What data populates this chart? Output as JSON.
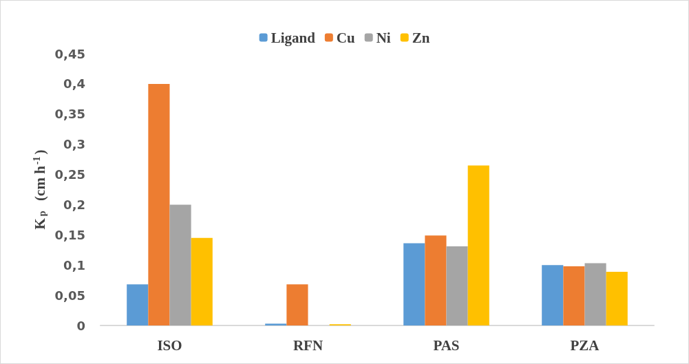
{
  "chart_data": {
    "type": "bar",
    "ylabel": "K$_{p}$  (cm h$^{-1}$)",
    "categories": [
      "ISO",
      "RFN",
      "PAS",
      "PZA"
    ],
    "series": [
      {
        "name": "Ligand",
        "color": "#5b9bd5",
        "values": [
          0.068,
          0.003,
          0.136,
          0.1
        ]
      },
      {
        "name": "Cu",
        "color": "#ed7d31",
        "values": [
          0.4,
          0.068,
          0.149,
          0.098
        ]
      },
      {
        "name": "Ni",
        "color": "#a5a5a5",
        "values": [
          0.2,
          0,
          0.131,
          0.103
        ]
      },
      {
        "name": "Zn",
        "color": "#ffc000",
        "values": [
          0.145,
          0.002,
          0.265,
          0.089
        ]
      }
    ],
    "ylim": [
      0,
      0.45
    ],
    "yticks": [
      0,
      {
        "value": 0.05,
        "label": "0,05"
      },
      {
        "value": 0.1,
        "label": "0,1"
      },
      {
        "value": 0.15,
        "label": "0,15"
      },
      {
        "value": 0.2,
        "label": "0,2"
      },
      {
        "value": 0.25,
        "label": "0,25"
      },
      {
        "value": 0.3,
        "label": "0,3"
      },
      {
        "value": 0.35,
        "label": "0,35"
      },
      {
        "value": 0.4,
        "label": "0,4"
      },
      {
        "value": 0.45,
        "label": "0,45"
      }
    ],
    "grid": false,
    "legend": "top"
  }
}
